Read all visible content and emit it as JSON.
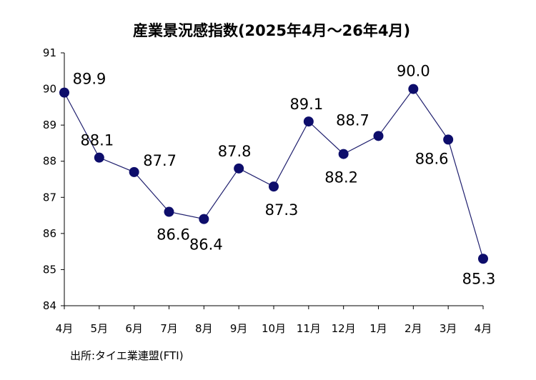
{
  "chart_data": {
    "type": "line",
    "title": "産業景況感指数(2025年4月〜26年4月)",
    "source": "出所:タイエ業連盟(FTI)",
    "xlabel": "",
    "ylabel": "",
    "categories": [
      "4月",
      "5月",
      "6月",
      "7月",
      "8月",
      "9月",
      "10月",
      "11月",
      "12月",
      "1月",
      "2月",
      "3月",
      "4月"
    ],
    "values": [
      89.9,
      88.1,
      87.7,
      86.6,
      86.4,
      87.8,
      87.3,
      89.1,
      88.2,
      88.7,
      90.0,
      88.6,
      85.3
    ],
    "data_labels": [
      "89.9",
      "88.1",
      "87.7",
      "86.6",
      "86.4",
      "87.8",
      "87.3",
      "89.1",
      "88.2",
      "88.7",
      "90.0",
      "88.6",
      "85.3"
    ],
    "yticks": [
      "84",
      "85",
      "86",
      "87",
      "88",
      "89",
      "90",
      "91"
    ],
    "ylim": [
      84,
      91
    ],
    "grid": false,
    "legend": "none",
    "colors": {
      "line": "#1f1f6e",
      "marker": "#0d0d6b",
      "axis": "#000000"
    }
  }
}
